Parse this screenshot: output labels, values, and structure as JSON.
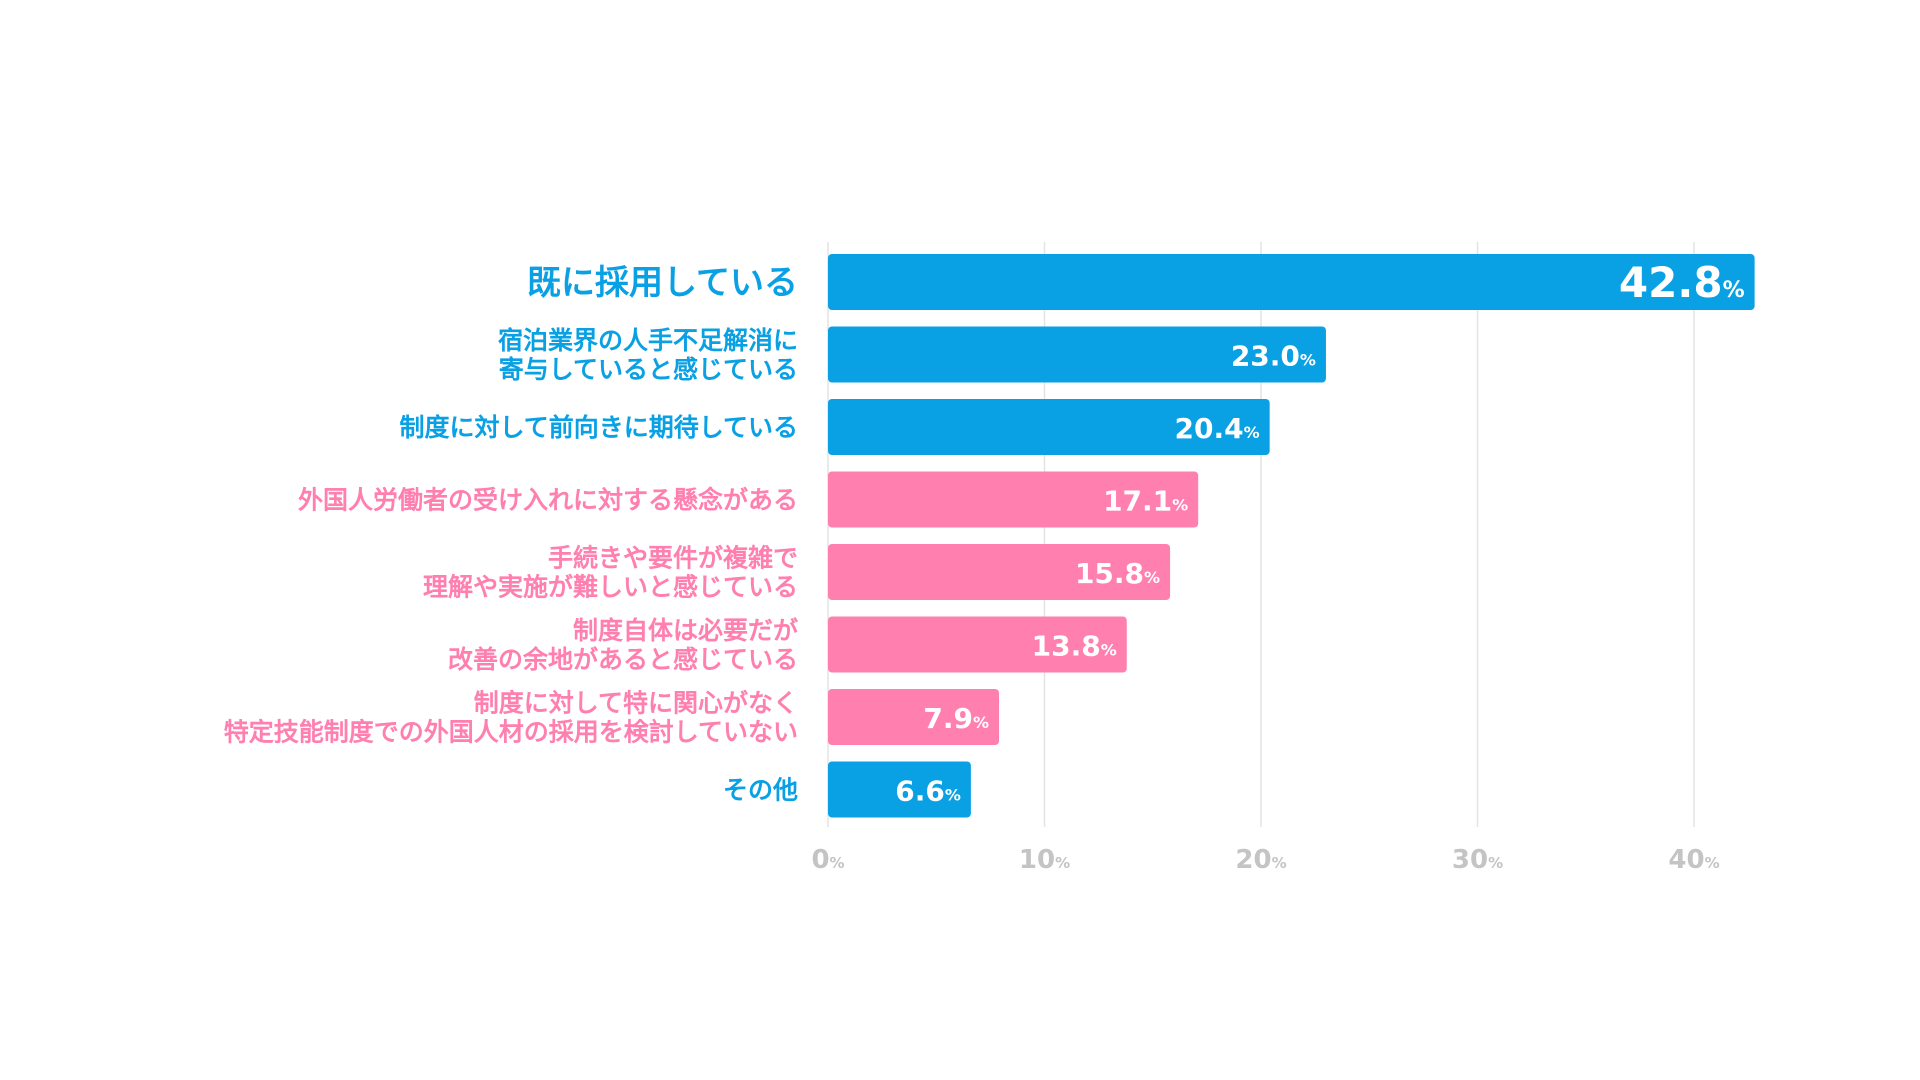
{
  "chart_data": {
    "type": "bar",
    "orientation": "horizontal",
    "categories": [
      [
        "既に採用している"
      ],
      [
        "宿泊業界の人手不足解消に",
        "寄与していると感じている"
      ],
      [
        "制度に対して前向きに期待している"
      ],
      [
        "外国人労働者の受け入れに対する懸念がある"
      ],
      [
        "手続きや要件が複雑で",
        "理解や実施が難しいと感じている"
      ],
      [
        "制度自体は必要だが",
        "改善の余地があると感じている"
      ],
      [
        "制度に対して特に関心がなく",
        "特定技能制度での外国人材の採用を検討していない"
      ],
      [
        "その他"
      ]
    ],
    "values": [
      42.8,
      23.0,
      20.4,
      17.1,
      15.8,
      13.8,
      7.9,
      6.6
    ],
    "value_labels": [
      "42.8",
      "23.0",
      "20.4",
      "17.1",
      "15.8",
      "13.8",
      "7.9",
      "6.6"
    ],
    "unit": "%",
    "sentiment": [
      "positive",
      "positive",
      "positive",
      "negative",
      "negative",
      "negative",
      "negative",
      "other"
    ],
    "colors": {
      "positive": "#0aa0e4",
      "negative": "#ff7faf",
      "other": "#0aa0e4"
    },
    "xlim": [
      0,
      45
    ],
    "xticks": [
      0,
      10,
      20,
      30,
      40
    ],
    "xtick_labels": [
      "0",
      "10",
      "20",
      "30",
      "40"
    ],
    "grid": true,
    "title": "",
    "xlabel": "",
    "ylabel": ""
  }
}
